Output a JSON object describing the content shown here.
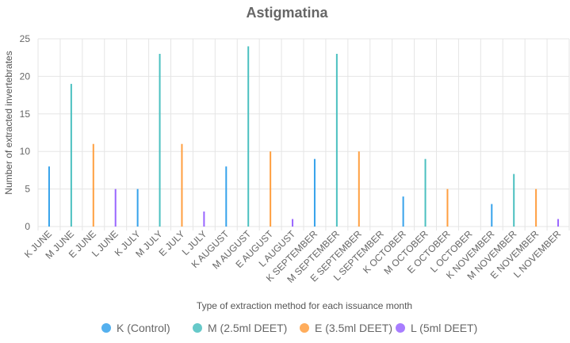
{
  "chart_data": {
    "type": "bar",
    "title": "Astigmatina",
    "xlabel": "Type of extraction method for each issuance month",
    "ylabel": "Number of extracted invertebrates",
    "ylim": [
      0,
      25
    ],
    "yticks": [
      0,
      5,
      10,
      15,
      20,
      25
    ],
    "grid": true,
    "legend_position": "bottom",
    "categories": [
      "K JUNE",
      "M JUNE",
      "E JUNE",
      "L JUNE",
      "K JULY",
      "M JULY",
      "E JULY",
      "L JULY",
      "K AUGUST",
      "M AUGUST",
      "E AUGUST",
      "L AUGUST",
      "K SEPTEMBER",
      "M SEPTEMBER",
      "E SEPTEMBER",
      "L SEPTEMBER",
      "K OCTOBER",
      "M OCTOBER",
      "E OCTOBER",
      "L OCTOBER",
      "K NOVEMBER",
      "M NOVEMBER",
      "E NOVEMBER",
      "L NOVEMBER"
    ],
    "series": [
      {
        "name": "K (Control)",
        "color": "#36a2eb",
        "values": [
          8,
          null,
          null,
          null,
          5,
          null,
          null,
          null,
          8,
          null,
          null,
          null,
          9,
          null,
          null,
          null,
          4,
          null,
          null,
          null,
          3,
          null,
          null,
          null
        ]
      },
      {
        "name": "M (2.5ml DEET)",
        "color": "#4bc0c0",
        "values": [
          null,
          19,
          null,
          null,
          null,
          23,
          null,
          null,
          null,
          24,
          null,
          null,
          null,
          23,
          null,
          null,
          null,
          9,
          null,
          null,
          null,
          7,
          null,
          null
        ]
      },
      {
        "name": "E (3.5ml DEET)",
        "color": "#ff9f40",
        "values": [
          null,
          null,
          11,
          null,
          null,
          null,
          11,
          null,
          null,
          null,
          10,
          null,
          null,
          null,
          10,
          null,
          null,
          null,
          5,
          null,
          null,
          null,
          5,
          null
        ]
      },
      {
        "name": "L (5ml DEET)",
        "color": "#9966ff",
        "values": [
          null,
          null,
          null,
          5,
          null,
          null,
          null,
          2,
          null,
          null,
          null,
          1,
          null,
          null,
          null,
          0,
          null,
          null,
          null,
          0,
          null,
          null,
          null,
          1
        ]
      }
    ]
  }
}
